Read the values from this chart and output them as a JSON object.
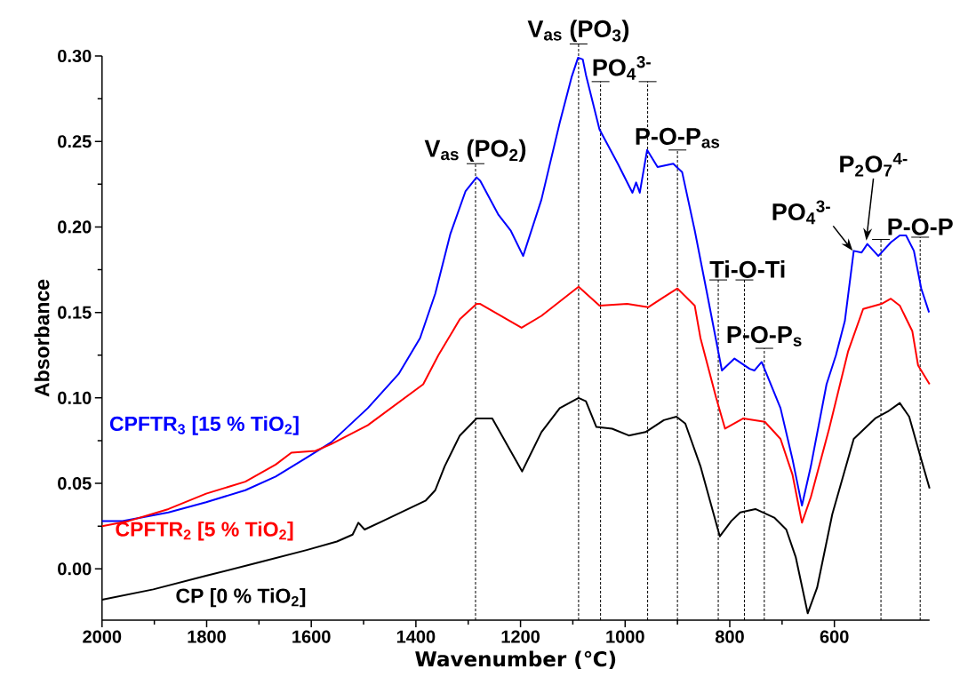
{
  "chart_data": {
    "type": "line",
    "xlabel": "Wavenumber (℃)",
    "ylabel": "Absorbance",
    "xlim": [
      2000,
      418
    ],
    "ylim": [
      -0.03,
      0.3
    ],
    "xticks": [
      2000,
      1800,
      1600,
      1400,
      1200,
      1000,
      800,
      600
    ],
    "yticks": [
      {
        "value": 0,
        "label": "0.00"
      },
      {
        "value": 0.05,
        "label": "0.05"
      },
      {
        "value": 0.1,
        "label": "0.10"
      },
      {
        "value": 0.15,
        "label": "0.15"
      },
      {
        "value": 0.2,
        "label": "0.20"
      },
      {
        "value": 0.25,
        "label": "0.25"
      },
      {
        "value": 0.3,
        "label": "0.30"
      }
    ],
    "series": [
      {
        "name": "CPFTR$_{3}$ [15 % TiO$_{2}$]",
        "color": "#0000ff",
        "x": [
          2000,
          1961,
          1873,
          1801,
          1726,
          1668,
          1609,
          1562,
          1492,
          1433,
          1392,
          1363,
          1334,
          1305,
          1284,
          1277,
          1242,
          1219,
          1195,
          1160,
          1125,
          1102,
          1090,
          1081,
          1075,
          1049,
          1014,
          986,
          979,
          972,
          958,
          938,
          908,
          891,
          867,
          844,
          815,
          791,
          762,
          753,
          739,
          703,
          680,
          662,
          645,
          615,
          597,
          580,
          563,
          548,
          537,
          516,
          492,
          475,
          463,
          448,
          434,
          419
        ],
        "values": [
          0.028,
          0.028,
          0.033,
          0.039,
          0.046,
          0.054,
          0.065,
          0.074,
          0.094,
          0.114,
          0.135,
          0.161,
          0.196,
          0.221,
          0.229,
          0.227,
          0.207,
          0.198,
          0.183,
          0.216,
          0.261,
          0.288,
          0.299,
          0.298,
          0.289,
          0.257,
          0.237,
          0.22,
          0.226,
          0.22,
          0.245,
          0.235,
          0.237,
          0.232,
          0.198,
          0.162,
          0.116,
          0.123,
          0.117,
          0.116,
          0.121,
          0.094,
          0.064,
          0.037,
          0.06,
          0.108,
          0.125,
          0.145,
          0.186,
          0.185,
          0.19,
          0.183,
          0.191,
          0.195,
          0.195,
          0.186,
          0.164,
          0.15
        ]
      },
      {
        "name": "CPFTR$_{2}$ [5 % TiO$_{2}$]",
        "color": "#ff0000",
        "x": [
          2000,
          1949,
          1873,
          1801,
          1726,
          1668,
          1638,
          1592,
          1562,
          1492,
          1386,
          1357,
          1316,
          1284,
          1277,
          1198,
          1160,
          1089,
          1049,
          996,
          956,
          926,
          900,
          867,
          856,
          826,
          809,
          774,
          733,
          703,
          680,
          662,
          645,
          610,
          574,
          545,
          510,
          492,
          475,
          451,
          440,
          418
        ],
        "values": [
          0.025,
          0.028,
          0.035,
          0.044,
          0.051,
          0.061,
          0.068,
          0.069,
          0.073,
          0.084,
          0.108,
          0.125,
          0.146,
          0.155,
          0.155,
          0.141,
          0.148,
          0.165,
          0.154,
          0.155,
          0.153,
          0.159,
          0.164,
          0.154,
          0.135,
          0.1,
          0.082,
          0.088,
          0.086,
          0.076,
          0.055,
          0.027,
          0.042,
          0.082,
          0.127,
          0.152,
          0.155,
          0.158,
          0.154,
          0.139,
          0.119,
          0.108
        ]
      },
      {
        "name": "CP [0 % TiO$_{2}$]",
        "color": "#000000",
        "x": [
          2000,
          1902,
          1801,
          1697,
          1609,
          1551,
          1521,
          1510,
          1498,
          1463,
          1381,
          1363,
          1345,
          1316,
          1284,
          1254,
          1197,
          1160,
          1125,
          1089,
          1075,
          1055,
          1025,
          993,
          961,
          926,
          902,
          885,
          856,
          819,
          797,
          780,
          751,
          715,
          692,
          674,
          651,
          633,
          604,
          563,
          522,
          498,
          475,
          457,
          434,
          418
        ],
        "values": [
          -0.018,
          -0.012,
          -0.004,
          0.004,
          0.011,
          0.016,
          0.02,
          0.027,
          0.023,
          0.028,
          0.04,
          0.046,
          0.06,
          0.078,
          0.088,
          0.088,
          0.057,
          0.08,
          0.094,
          0.1,
          0.098,
          0.083,
          0.082,
          0.078,
          0.08,
          0.087,
          0.089,
          0.085,
          0.06,
          0.019,
          0.028,
          0.033,
          0.035,
          0.03,
          0.023,
          0.007,
          -0.026,
          -0.011,
          0.032,
          0.076,
          0.088,
          0.092,
          0.097,
          0.089,
          0.064,
          0.047
        ]
      }
    ],
    "ref_lines": [
      {
        "axis": "x",
        "value": 1286,
        "label": "V$_{as}$ (PO$_{2}$)",
        "line_style": "dashed",
        "color": "#000000"
      },
      {
        "axis": "x",
        "value": 1089,
        "label": "V$_{as}$ (PO$_{3}$)",
        "line_style": "dashed",
        "color": "#000000"
      },
      {
        "axis": "x",
        "value": 1047,
        "label": "PO$_{4}$$^{3-}$",
        "line_style": "dashed",
        "color": "#000000"
      },
      {
        "axis": "x",
        "value": 957,
        "label": null,
        "line_style": "dashed",
        "color": "#000000"
      },
      {
        "axis": "x",
        "value": 900,
        "label": "P-O-P$_{as}$",
        "line_style": "dashed",
        "color": "#000000"
      },
      {
        "axis": "x",
        "value": 822,
        "label": "Ti-O-Ti",
        "line_style": "dashed",
        "color": "#000000"
      },
      {
        "axis": "x",
        "value": 772,
        "label": null,
        "line_style": "dashed",
        "color": "#000000"
      },
      {
        "axis": "x",
        "value": 734,
        "label": "P-O-P$_{s}$",
        "line_style": "dashed",
        "color": "#000000"
      },
      {
        "axis": "x",
        "value": 511,
        "label": null,
        "line_style": "dashed",
        "color": "#000000"
      },
      {
        "axis": "x",
        "value": 436,
        "label": "P-O-P",
        "line_style": "dashed",
        "color": "#000000"
      }
    ],
    "annotations": [
      {
        "text": "PO$_{4}$$^{3-}$",
        "x": 565,
        "y": 0.186
      },
      {
        "text": "P$_{2}$O$_{7}$$^{4-}$",
        "x": 539,
        "y": 0.192
      }
    ]
  }
}
